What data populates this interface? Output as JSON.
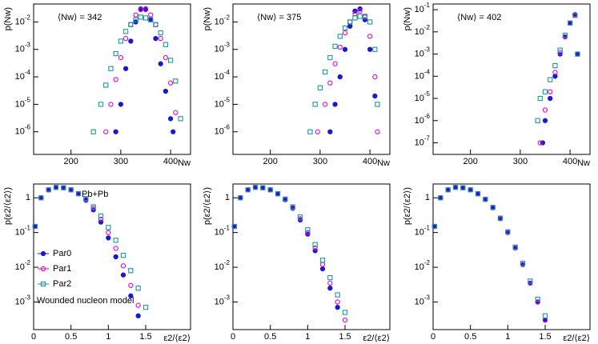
{
  "chart_data": [
    {
      "type": "scatter",
      "log_y": true,
      "xlabel": "Nw",
      "ylabel": "p(Nw)",
      "annotations": [
        "⟨Nw⟩ = 342"
      ],
      "xlim": [
        125,
        440
      ],
      "xticks": [
        200,
        300,
        400
      ],
      "ylim": [
        1.5e-07,
        0.045
      ],
      "yticks": [
        {
          "value": 1e-06,
          "label": "10",
          "exponent": "-6"
        },
        {
          "value": 1e-05,
          "label": "10",
          "exponent": "-5"
        },
        {
          "value": 0.0001,
          "label": "10",
          "exponent": "-4"
        },
        {
          "value": 0.001,
          "label": "10",
          "exponent": "-3"
        },
        {
          "value": 0.01,
          "label": "10",
          "exponent": "-2"
        }
      ],
      "series": [
        {
          "color": "#1a1acc",
          "marker": "filled-circle",
          "x": [
            290,
            300,
            310,
            320,
            330,
            340,
            350,
            360,
            370,
            380,
            390,
            400,
            405
          ],
          "values": [
            1e-06,
            1e-05,
            0.0002,
            0.002,
            0.01,
            0.03,
            0.03,
            0.012,
            0.0025,
            0.0003,
            3e-05,
            3e-06,
            1e-06
          ]
        },
        {
          "color": "#e000e0",
          "marker": "open-circle",
          "x": [
            270,
            280,
            290,
            300,
            310,
            320,
            330,
            340,
            350,
            360,
            370,
            380,
            390,
            400,
            410
          ],
          "values": [
            1e-06,
            1e-05,
            8e-05,
            0.0005,
            0.0025,
            0.008,
            0.018,
            0.028,
            0.028,
            0.018,
            0.008,
            0.0025,
            0.0005,
            6e-05,
            5e-06
          ]
        },
        {
          "color": "#1a9a9a",
          "marker": "open-square",
          "x": [
            245,
            260,
            270,
            280,
            290,
            300,
            310,
            320,
            330,
            340,
            350,
            360,
            370,
            380,
            390,
            400,
            410,
            420
          ],
          "values": [
            1e-06,
            1e-05,
            5e-05,
            0.0002,
            0.0007,
            0.002,
            0.0045,
            0.008,
            0.012,
            0.015,
            0.014,
            0.012,
            0.008,
            0.004,
            0.0015,
            0.0004,
            7e-05,
            3e-06
          ]
        }
      ]
    },
    {
      "type": "scatter",
      "log_y": true,
      "xlabel": "Nw",
      "ylabel": "p(Nw)",
      "annotations": [
        "⟨Nw⟩ = 375"
      ],
      "xlim": [
        125,
        440
      ],
      "xticks": [
        200,
        300,
        400
      ],
      "ylim": [
        1.5e-07,
        0.045
      ],
      "yticks": [
        {
          "value": 1e-06,
          "label": "10",
          "exponent": "-6"
        },
        {
          "value": 1e-05,
          "label": "10",
          "exponent": "-5"
        },
        {
          "value": 0.0001,
          "label": "10",
          "exponent": "-4"
        },
        {
          "value": 0.001,
          "label": "10",
          "exponent": "-3"
        },
        {
          "value": 0.01,
          "label": "10",
          "exponent": "-2"
        }
      ],
      "series": [
        {
          "color": "#1a1acc",
          "marker": "filled-circle",
          "x": [
            320,
            330,
            340,
            350,
            360,
            370,
            380,
            390,
            400,
            410
          ],
          "values": [
            1e-06,
            1e-05,
            0.0001,
            0.001,
            0.007,
            0.025,
            0.03,
            0.012,
            0.001,
            2e-05
          ]
        },
        {
          "color": "#e000e0",
          "marker": "open-circle",
          "x": [
            295,
            310,
            320,
            330,
            340,
            350,
            360,
            370,
            380,
            390,
            400,
            410,
            415
          ],
          "values": [
            1e-06,
            1e-05,
            6e-05,
            0.0003,
            0.0012,
            0.004,
            0.01,
            0.02,
            0.025,
            0.015,
            0.003,
            0.0001,
            1e-06
          ]
        },
        {
          "color": "#1a9a9a",
          "marker": "open-square",
          "x": [
            280,
            290,
            300,
            310,
            320,
            330,
            340,
            350,
            360,
            370,
            380,
            390,
            400,
            410,
            415
          ],
          "values": [
            1e-06,
            1e-05,
            4e-05,
            0.00015,
            0.0005,
            0.0013,
            0.003,
            0.006,
            0.01,
            0.014,
            0.016,
            0.016,
            0.01,
            0.001,
            1e-05
          ]
        }
      ]
    },
    {
      "type": "scatter",
      "log_y": true,
      "xlabel": "Nw",
      "ylabel": "p(Nw)",
      "annotations": [
        "⟨Nw⟩ = 402"
      ],
      "xlim": [
        125,
        440
      ],
      "xticks": [
        200,
        300,
        400
      ],
      "ylim": [
        3e-08,
        0.18
      ],
      "yticks": [
        {
          "value": 1e-07,
          "label": "10",
          "exponent": "-7"
        },
        {
          "value": 1e-06,
          "label": "10",
          "exponent": "-6"
        },
        {
          "value": 1e-05,
          "label": "10",
          "exponent": "-5"
        },
        {
          "value": 0.0001,
          "label": "10",
          "exponent": "-4"
        },
        {
          "value": 0.001,
          "label": "10",
          "exponent": "-3"
        },
        {
          "value": 0.01,
          "label": "10",
          "exponent": "-2"
        },
        {
          "value": 0.1,
          "label": "10",
          "exponent": "-1"
        }
      ],
      "series": [
        {
          "color": "#1a1acc",
          "marker": "filled-circle",
          "x": [
            345,
            350,
            360,
            370,
            380,
            390,
            400,
            410,
            415
          ],
          "values": [
            1e-07,
            1e-06,
            1e-05,
            0.0001,
            0.001,
            0.006,
            0.025,
            0.06,
            0.001
          ]
        },
        {
          "color": "#e000e0",
          "marker": "open-circle",
          "x": [
            340,
            350,
            360,
            370,
            380,
            390,
            400,
            410,
            415
          ],
          "values": [
            1e-07,
            3e-06,
            2e-05,
            0.00015,
            0.0012,
            0.006,
            0.025,
            0.06,
            0.001
          ]
        },
        {
          "color": "#1a9a9a",
          "marker": "open-square",
          "x": [
            335,
            340,
            350,
            360,
            370,
            380,
            390,
            400,
            410,
            415
          ],
          "values": [
            1e-06,
            1e-05,
            2e-05,
            7e-05,
            0.0003,
            0.0015,
            0.007,
            0.025,
            0.055,
            0.001
          ]
        }
      ]
    },
    {
      "type": "scatter",
      "log_y": true,
      "xlabel": "ε2/⟨ε2⟩",
      "ylabel": "p(ε2/⟨ε2⟩)",
      "annotations": [
        "Pb+Pb",
        "Wounded nucleon model"
      ],
      "legend": "lower left",
      "xlim": [
        0,
        2.1
      ],
      "xticks": [
        0,
        0.5,
        1,
        1.5
      ],
      "ylim": [
        0.00016,
        2.5
      ],
      "yticks": [
        {
          "value": 0.001,
          "label": "10",
          "exponent": "-3"
        },
        {
          "value": 0.01,
          "label": "10",
          "exponent": "-2"
        },
        {
          "value": 0.1,
          "label": "10",
          "exponent": "-1"
        },
        1
      ],
      "x": [
        0.02,
        0.1,
        0.2,
        0.3,
        0.4,
        0.5,
        0.6,
        0.7,
        0.8,
        0.9,
        1.0,
        1.1,
        1.2,
        1.3,
        1.4,
        1.5,
        1.6
      ],
      "series": [
        {
          "name": "Par0",
          "color": "#1a1acc",
          "marker": "filled-circle",
          "values": [
            0.15,
            1.0,
            1.7,
            2.0,
            1.95,
            1.7,
            1.3,
            0.85,
            0.45,
            0.2,
            0.07,
            0.02,
            0.006,
            0.0015,
            0.0004,
            null,
            null
          ]
        },
        {
          "name": "Par1",
          "color": "#e000e0",
          "marker": "open-circle",
          "values": [
            0.15,
            1.0,
            1.7,
            2.0,
            1.95,
            1.7,
            1.3,
            0.9,
            0.5,
            0.24,
            0.1,
            0.035,
            0.011,
            0.003,
            0.0008,
            null,
            null
          ]
        },
        {
          "name": "Par2",
          "color": "#1a9a9a",
          "marker": "open-square",
          "values": [
            0.15,
            1.0,
            1.7,
            2.0,
            1.95,
            1.7,
            1.32,
            0.95,
            0.55,
            0.3,
            0.14,
            0.06,
            0.022,
            0.008,
            0.0025,
            0.0007,
            null
          ]
        }
      ]
    },
    {
      "type": "scatter",
      "log_y": true,
      "xlabel": "ε2/⟨ε2⟩",
      "ylabel": "p(ε2/⟨ε2⟩)",
      "xlim": [
        0,
        2.1
      ],
      "xticks": [
        0,
        0.5,
        1,
        1.5
      ],
      "ylim": [
        0.00016,
        2.5
      ],
      "yticks": [
        {
          "value": 0.001,
          "label": "10",
          "exponent": "-3"
        },
        {
          "value": 0.01,
          "label": "10",
          "exponent": "-2"
        },
        {
          "value": 0.1,
          "label": "10",
          "exponent": "-1"
        },
        1
      ],
      "x": [
        0.02,
        0.1,
        0.2,
        0.3,
        0.4,
        0.5,
        0.6,
        0.7,
        0.8,
        0.9,
        1.0,
        1.1,
        1.2,
        1.3,
        1.4,
        1.5,
        1.6
      ],
      "series": [
        {
          "color": "#1a1acc",
          "marker": "filled-circle",
          "values": [
            0.15,
            1.0,
            1.7,
            2.0,
            1.95,
            1.7,
            1.3,
            0.88,
            0.5,
            0.23,
            0.09,
            0.03,
            0.009,
            0.0025,
            0.0007,
            null,
            null
          ]
        },
        {
          "color": "#e000e0",
          "marker": "open-circle",
          "values": [
            0.15,
            1.0,
            1.7,
            2.0,
            1.95,
            1.7,
            1.3,
            0.9,
            0.52,
            0.25,
            0.1,
            0.036,
            0.012,
            0.0035,
            0.001,
            0.0003,
            null
          ]
        },
        {
          "color": "#1a9a9a",
          "marker": "open-square",
          "values": [
            0.15,
            1.0,
            1.7,
            2.0,
            1.95,
            1.7,
            1.31,
            0.92,
            0.55,
            0.28,
            0.12,
            0.045,
            0.016,
            0.005,
            0.0016,
            0.0005,
            null
          ]
        }
      ]
    },
    {
      "type": "scatter",
      "log_y": true,
      "xlabel": "ε2/⟨ε2⟩",
      "ylabel": "p(ε2/⟨ε2⟩)",
      "xlim": [
        0,
        2.1
      ],
      "xticks": [
        0,
        0.5,
        1,
        1.5
      ],
      "ylim": [
        0.00016,
        2.5
      ],
      "yticks": [
        {
          "value": 0.001,
          "label": "10",
          "exponent": "-3"
        },
        {
          "value": 0.01,
          "label": "10",
          "exponent": "-2"
        },
        {
          "value": 0.1,
          "label": "10",
          "exponent": "-1"
        },
        1
      ],
      "x": [
        0.02,
        0.1,
        0.2,
        0.3,
        0.4,
        0.5,
        0.6,
        0.7,
        0.8,
        0.9,
        1.0,
        1.1,
        1.2,
        1.3,
        1.4,
        1.5,
        1.6
      ],
      "series": [
        {
          "color": "#1a1acc",
          "marker": "filled-circle",
          "values": [
            0.15,
            1.0,
            1.7,
            2.0,
            1.95,
            1.7,
            1.3,
            0.9,
            0.52,
            0.25,
            0.1,
            0.036,
            0.012,
            0.0035,
            0.001,
            0.0003,
            null
          ]
        },
        {
          "color": "#e000e0",
          "marker": "open-circle",
          "values": [
            0.15,
            1.0,
            1.7,
            2.0,
            1.95,
            1.7,
            1.3,
            0.9,
            0.52,
            0.25,
            0.1,
            0.036,
            0.012,
            0.0035,
            0.001,
            0.0003,
            null
          ]
        },
        {
          "color": "#1a9a9a",
          "marker": "open-square",
          "values": [
            0.15,
            1.0,
            1.7,
            2.0,
            1.95,
            1.7,
            1.31,
            0.91,
            0.53,
            0.26,
            0.105,
            0.038,
            0.013,
            0.004,
            0.0012,
            0.0004,
            null
          ]
        }
      ]
    }
  ]
}
